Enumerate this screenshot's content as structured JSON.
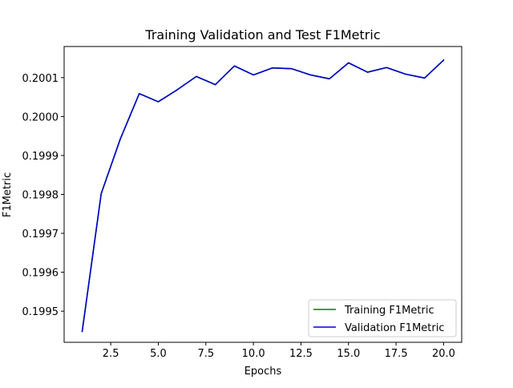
{
  "chart_data": {
    "type": "line",
    "title": "Training Validation and Test F1Metric",
    "xlabel": "Epochs",
    "ylabel": "F1Metric",
    "xlim": [
      0.05,
      20.95
    ],
    "ylim": [
      0.19942,
      0.20018
    ],
    "xticks": [
      2.5,
      5.0,
      7.5,
      10.0,
      12.5,
      15.0,
      17.5,
      20.0
    ],
    "xtick_labels": [
      "2.5",
      "5.0",
      "7.5",
      "10.0",
      "12.5",
      "15.0",
      "17.5",
      "20.0"
    ],
    "yticks": [
      0.1995,
      0.1996,
      0.1997,
      0.1998,
      0.1999,
      0.2,
      0.2001
    ],
    "ytick_labels": [
      "0.1995",
      "0.1996",
      "0.1997",
      "0.1998",
      "0.1999",
      "0.2000",
      "0.2001"
    ],
    "grid": false,
    "legend_position": "lower-right",
    "x": [
      1,
      2,
      3,
      4,
      5,
      6,
      7,
      8,
      9,
      10,
      11,
      12,
      13,
      14,
      15,
      16,
      17,
      18,
      19,
      20
    ],
    "series": [
      {
        "name": "Training F1Metric",
        "color": "#008000",
        "values": [
          0.199448,
          0.199802,
          0.199942,
          0.200059,
          0.200038,
          0.200069,
          0.200103,
          0.200082,
          0.20013,
          0.200107,
          0.200125,
          0.200123,
          0.200107,
          0.200097,
          0.200138,
          0.200114,
          0.200126,
          0.200109,
          0.200099,
          0.200145
        ]
      },
      {
        "name": "Validation F1Metric",
        "color": "#0000cc",
        "values": [
          0.199448,
          0.199802,
          0.199942,
          0.200059,
          0.200038,
          0.200069,
          0.200103,
          0.200082,
          0.20013,
          0.200107,
          0.200125,
          0.200123,
          0.200107,
          0.200097,
          0.200138,
          0.200114,
          0.200126,
          0.200109,
          0.200099,
          0.200145
        ]
      }
    ]
  }
}
